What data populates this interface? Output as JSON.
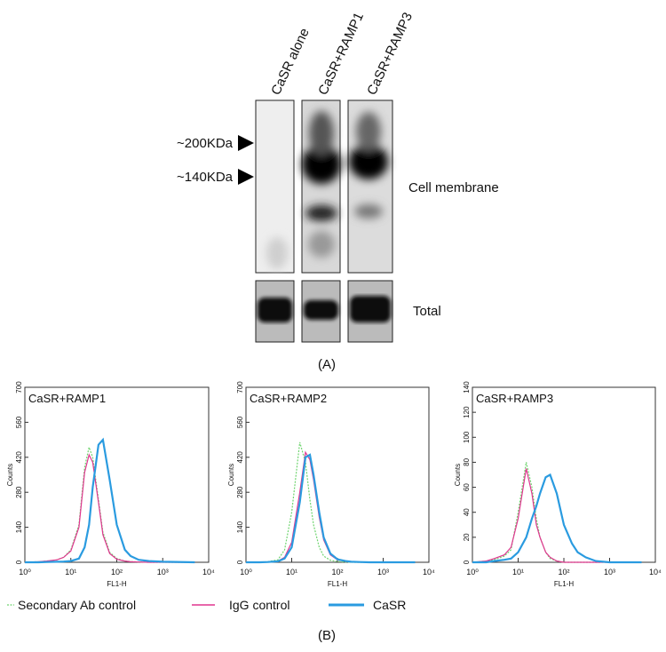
{
  "blot": {
    "lanes": [
      "CaSR alone",
      "CaSR+RAMP1",
      "CaSR+RAMP3"
    ],
    "markers": [
      "~200KDa",
      "~140KDa"
    ],
    "membrane_label": "Cell membrane",
    "total_label": "Total",
    "panel_label": "(A)"
  },
  "legend": [
    {
      "name": "Secondary Ab control",
      "color": "#6fd46f"
    },
    {
      "name": "IgG control",
      "color": "#e0358f"
    },
    {
      "name": "CaSR",
      "color": "#2a9be0"
    }
  ],
  "panel_label_b": "(B)",
  "chart_data": [
    {
      "type": "line",
      "title": "CaSR+RAMP1",
      "x_label": "FL1-H",
      "y_label": "Counts",
      "log_x": true,
      "xlim": [
        1,
        10000
      ],
      "xticks": [
        {
          "value": 1,
          "label": "10⁰"
        },
        {
          "value": 10,
          "label": "10¹"
        },
        {
          "value": 100,
          "label": "10²"
        },
        {
          "value": 1000,
          "label": "10³"
        },
        {
          "value": 10000,
          "label": "10⁴"
        }
      ],
      "ylim": [
        0,
        700
      ],
      "yticks": [
        0,
        140,
        280,
        420,
        560,
        700
      ],
      "x": [
        1,
        2,
        3,
        5,
        7,
        10,
        15,
        20,
        25,
        30,
        40,
        50,
        70,
        100,
        150,
        200,
        300,
        500,
        1000,
        5000
      ],
      "series": [
        {
          "color": "#6fd46f",
          "values": [
            0,
            2,
            5,
            10,
            20,
            50,
            150,
            380,
            460,
            420,
            250,
            120,
            40,
            15,
            5,
            3,
            1,
            0,
            0,
            0
          ]
        },
        {
          "color": "#e0358f",
          "values": [
            0,
            2,
            5,
            10,
            20,
            45,
            140,
            360,
            430,
            400,
            240,
            110,
            35,
            12,
            5,
            2,
            1,
            0,
            0,
            0
          ]
        },
        {
          "color": "#2a9be0",
          "values": [
            0,
            0,
            1,
            2,
            3,
            5,
            15,
            60,
            150,
            300,
            470,
            490,
            330,
            150,
            50,
            25,
            10,
            5,
            2,
            0
          ]
        }
      ]
    },
    {
      "type": "line",
      "title": "CaSR+RAMP2",
      "x_label": "FL1-H",
      "y_label": "Counts",
      "log_x": true,
      "xlim": [
        1,
        10000
      ],
      "xticks": [
        {
          "value": 1,
          "label": "10⁰"
        },
        {
          "value": 10,
          "label": "10¹"
        },
        {
          "value": 100,
          "label": "10²"
        },
        {
          "value": 1000,
          "label": "10³"
        },
        {
          "value": 10000,
          "label": "10⁴"
        }
      ],
      "ylim": [
        0,
        700
      ],
      "yticks": [
        0,
        140,
        280,
        420,
        560,
        700
      ],
      "x": [
        1,
        2,
        3,
        5,
        7,
        10,
        15,
        20,
        25,
        30,
        40,
        50,
        70,
        100,
        150,
        200,
        300,
        500,
        1000,
        5000
      ],
      "series": [
        {
          "color": "#6fd46f",
          "values": [
            0,
            0,
            2,
            10,
            50,
            200,
            480,
            400,
            250,
            150,
            60,
            25,
            8,
            3,
            1,
            0,
            0,
            0,
            0,
            0
          ]
        },
        {
          "color": "#e0358f",
          "values": [
            0,
            0,
            1,
            5,
            20,
            80,
            280,
            440,
            410,
            330,
            180,
            90,
            30,
            10,
            4,
            2,
            1,
            0,
            0,
            0
          ]
        },
        {
          "color": "#2a9be0",
          "values": [
            0,
            0,
            1,
            4,
            15,
            60,
            240,
            420,
            430,
            350,
            200,
            100,
            35,
            12,
            5,
            2,
            1,
            0,
            0,
            0
          ]
        }
      ]
    },
    {
      "type": "line",
      "title": "CaSR+RAMP3",
      "x_label": "FL1-H",
      "y_label": "Counts",
      "log_x": true,
      "xlim": [
        1,
        10000
      ],
      "xticks": [
        {
          "value": 1,
          "label": "10⁰"
        },
        {
          "value": 10,
          "label": "10¹"
        },
        {
          "value": 100,
          "label": "10²"
        },
        {
          "value": 1000,
          "label": "10³"
        },
        {
          "value": 10000,
          "label": "10⁴"
        }
      ],
      "ylim": [
        0,
        140
      ],
      "yticks": [
        0,
        20,
        40,
        60,
        80,
        100,
        120,
        140
      ],
      "x": [
        1,
        2,
        3,
        5,
        7,
        10,
        15,
        20,
        25,
        30,
        40,
        50,
        70,
        100,
        150,
        200,
        300,
        500,
        1000,
        5000
      ],
      "series": [
        {
          "color": "#6fd46f",
          "values": [
            0,
            1,
            2,
            5,
            10,
            40,
            80,
            60,
            35,
            20,
            8,
            3,
            1,
            0,
            0,
            0,
            0,
            0,
            0,
            0
          ]
        },
        {
          "color": "#e0358f",
          "values": [
            0,
            1,
            3,
            6,
            12,
            35,
            75,
            55,
            30,
            20,
            8,
            4,
            1,
            0,
            0,
            0,
            0,
            0,
            0,
            0
          ]
        },
        {
          "color": "#2a9be0",
          "values": [
            0,
            0,
            1,
            2,
            3,
            8,
            20,
            35,
            45,
            55,
            68,
            70,
            55,
            30,
            15,
            8,
            4,
            1,
            0,
            0
          ]
        }
      ]
    }
  ]
}
